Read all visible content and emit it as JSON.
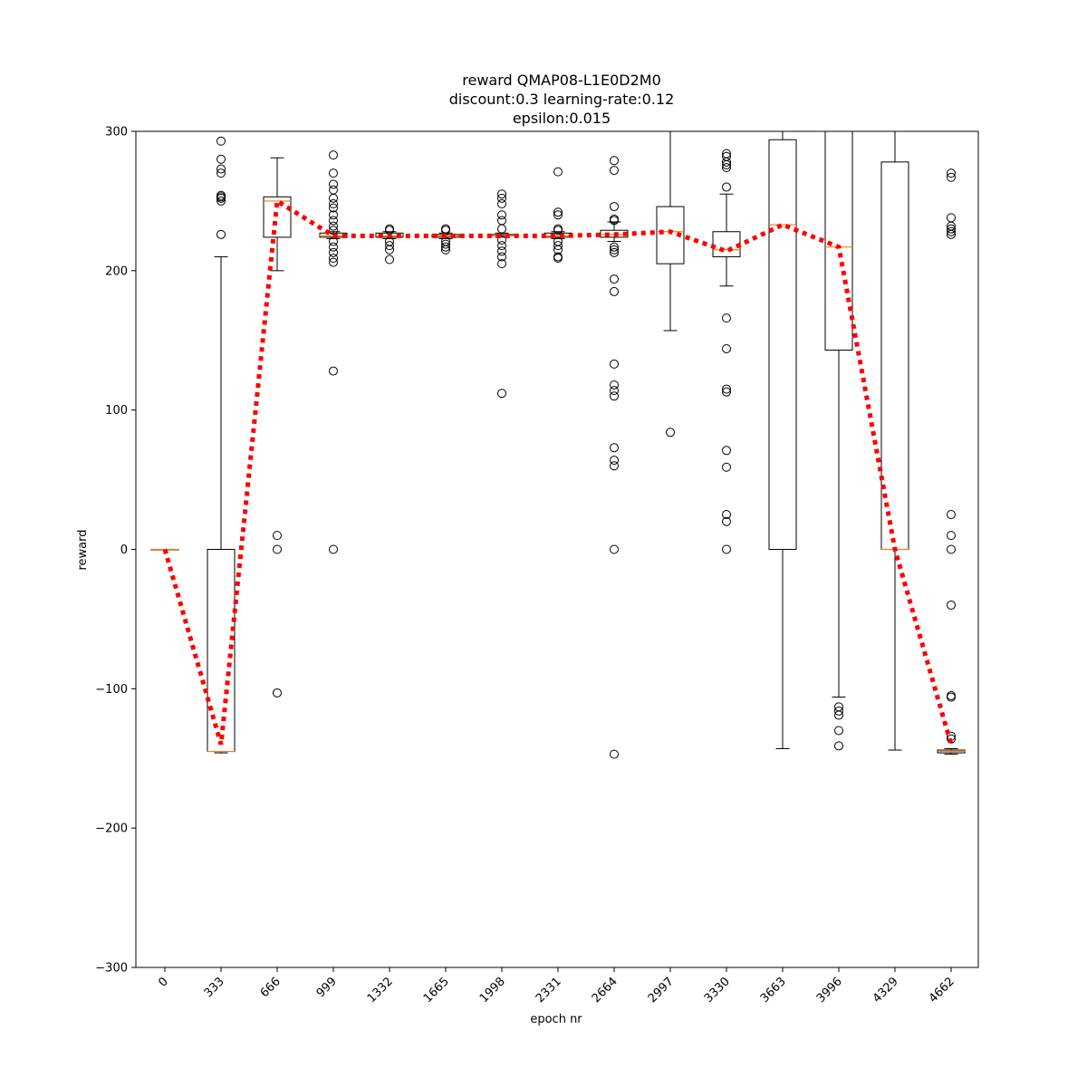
{
  "chart_data": {
    "type": "box",
    "title_lines": [
      "reward QMAP08-L1E0D2M0",
      "discount:0.3 learning-rate:0.12",
      "epsilon:0.015"
    ],
    "xlabel": "epoch nr",
    "ylabel": "reward",
    "ylim": [
      -300,
      300
    ],
    "yticks": [
      -300,
      -200,
      -100,
      0,
      100,
      200,
      300
    ],
    "ytick_labels": [
      "−300",
      "−200",
      "−100",
      "0",
      "100",
      "200",
      "300"
    ],
    "categories": [
      "0",
      "333",
      "666",
      "999",
      "1332",
      "1665",
      "1998",
      "2331",
      "2664",
      "2997",
      "3330",
      "3663",
      "3996",
      "4329",
      "4662"
    ],
    "boxes": [
      {
        "q1": 0,
        "median": 0,
        "q3": 0,
        "whisker_low": 0,
        "whisker_high": 0,
        "outliers": []
      },
      {
        "q1": -145,
        "median": -145,
        "q3": 0,
        "whisker_low": -146,
        "whisker_high": 210,
        "outliers": [
          226,
          250,
          252,
          253,
          254,
          270,
          273,
          280,
          293
        ]
      },
      {
        "q1": 224,
        "median": 250,
        "q3": 253,
        "whisker_low": 200,
        "whisker_high": 281,
        "outliers": [
          10,
          0,
          -103
        ]
      },
      {
        "q1": 224,
        "median": 225,
        "q3": 227,
        "whisker_low": 223,
        "whisker_high": 228,
        "outliers": [
          283,
          270,
          262,
          258,
          252,
          248,
          245,
          240,
          236,
          232,
          229,
          221,
          217,
          213,
          209,
          206,
          128,
          0
        ]
      },
      {
        "q1": 224,
        "median": 225,
        "q3": 227,
        "whisker_low": 223,
        "whisker_high": 228,
        "outliers": [
          230,
          229,
          221,
          218,
          215,
          208
        ]
      },
      {
        "q1": 224,
        "median": 225,
        "q3": 226,
        "whisker_low": 223,
        "whisker_high": 227,
        "outliers": [
          230,
          229,
          221,
          219,
          217,
          215
        ]
      },
      {
        "q1": 225,
        "median": 225,
        "q3": 226,
        "whisker_low": 224,
        "whisker_high": 227,
        "outliers": [
          255,
          252,
          248,
          240,
          236,
          230,
          222,
          218,
          214,
          210,
          205,
          112
        ]
      },
      {
        "q1": 224,
        "median": 225,
        "q3": 227,
        "whisker_low": 223,
        "whisker_high": 228,
        "outliers": [
          271,
          242,
          240,
          230,
          229,
          221,
          218,
          215,
          210,
          209
        ]
      },
      {
        "q1": 224,
        "median": 226,
        "q3": 229,
        "whisker_low": 221,
        "whisker_high": 235,
        "outliers": [
          279,
          272,
          246,
          237,
          236,
          217,
          215,
          213,
          194,
          185,
          133,
          118,
          114,
          110,
          73,
          64,
          60,
          0,
          -147
        ]
      },
      {
        "q1": 205,
        "median": 228,
        "q3": 246,
        "whisker_low": 157,
        "whisker_high": 300,
        "outliers": [
          84
        ]
      },
      {
        "q1": 210,
        "median": 215,
        "q3": 228,
        "whisker_low": 189,
        "whisker_high": 255,
        "outliers": [
          284,
          282,
          278,
          276,
          274,
          260,
          166,
          144,
          115,
          113,
          71,
          59,
          25,
          20,
          0
        ]
      },
      {
        "q1": 0,
        "median": 233,
        "q3": 294,
        "whisker_low": -143,
        "whisker_high": 300,
        "outliers": []
      },
      {
        "q1": 143,
        "median": 217,
        "q3": 300,
        "whisker_low": -106,
        "whisker_high": 300,
        "outliers": [
          -113,
          -116,
          -119,
          -130,
          -141
        ]
      },
      {
        "q1": 0,
        "median": 0,
        "q3": 278,
        "whisker_low": -144,
        "whisker_high": 300,
        "outliers": []
      },
      {
        "q1": -146,
        "median": -145,
        "q3": -144,
        "whisker_low": -147,
        "whisker_high": -143,
        "outliers": [
          270,
          267,
          238,
          232,
          230,
          228,
          226,
          25,
          10,
          0,
          -40,
          -105,
          -106,
          -134,
          -136
        ]
      }
    ],
    "mean_line": {
      "style": "dotted",
      "values": [
        0,
        -140,
        250,
        225,
        225,
        225,
        225,
        225,
        226,
        228,
        214,
        233,
        217,
        0,
        -140
      ]
    },
    "colors": {
      "box": "#000000",
      "median": "#ff7f0e",
      "mean_line": "#ff0000",
      "outlier_edge": "#000000"
    }
  }
}
